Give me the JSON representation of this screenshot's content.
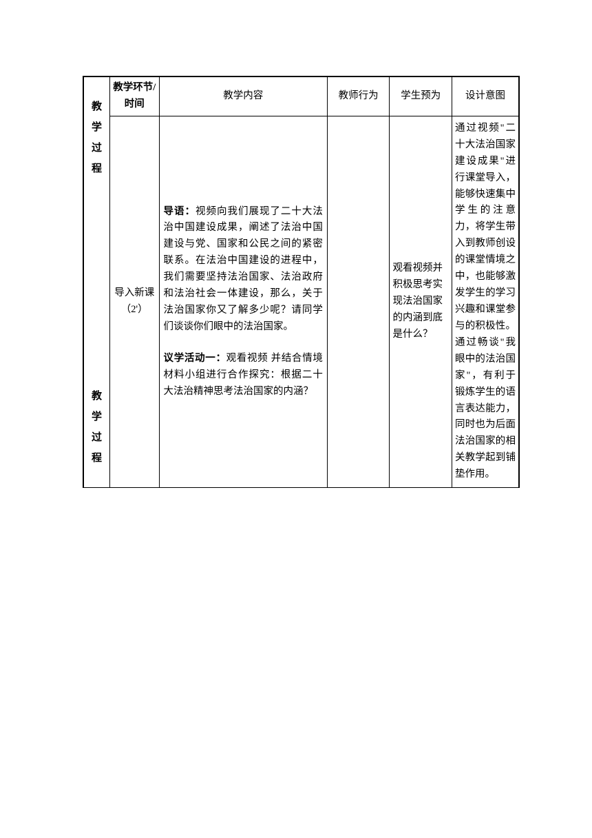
{
  "sideLabel": {
    "upper": "教学过程",
    "lower": "教学过程"
  },
  "headers": {
    "stage": "教学环节/时间",
    "content": "教学内容",
    "teacher": "教师行为",
    "student": "学生预为",
    "design": "设计意图"
  },
  "row": {
    "stage": "导入新课（2'）",
    "intro_label": "导语：",
    "intro_text": "视频向我们展现了二十大法治中国建设成果，阐述了法治中国建设与党、国家和公民之间的紧密联系。在法治中国建设的进程中，我们需要坚持法治国家、法治政府和法治社会一体建设，那么，关于法治国家你又了解多少呢？请同学们谈谈你们眼中的法治国家。",
    "activity_label": "议学活动一：",
    "activity_text": "观看视频 并结合情境材料小组进行合作探究：根据二十大法治精神思考法治国家的内涵？",
    "teacher": "",
    "student": "观看视频并积极思考实现法治国家的内涵到底是什么？",
    "design": "通过视频\"二十大法治国家建设成果\"进行课堂导入，能够快速集中学生的注意力，将学生带入到教师创设的课堂情境之中，也能够激发学生的学习兴趣和课堂参与的积极性。通过畅谈\"我眼中的法治国家\"，有利于锻炼学生的语言表达能力，同时也为后面法治国家的相关教学起到铺垫作用。"
  }
}
